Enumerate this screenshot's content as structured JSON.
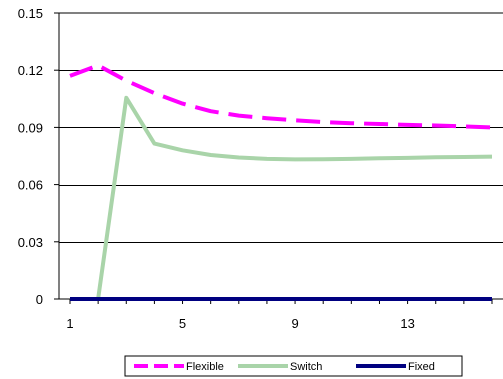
{
  "chart_data": {
    "type": "line",
    "title": "",
    "xlabel": "",
    "ylabel": "",
    "x": [
      1,
      2,
      3,
      4,
      5,
      6,
      7,
      8,
      9,
      10,
      11,
      12,
      13,
      14,
      15,
      16
    ],
    "xlim": [
      1,
      16
    ],
    "ylim": [
      0,
      0.15
    ],
    "x_tick_labels": [
      "1",
      "5",
      "9",
      "13"
    ],
    "x_tick_values": [
      1,
      5,
      9,
      13
    ],
    "y_tick_labels": [
      "0",
      "0.03",
      "0.06",
      "0.09",
      "0.12",
      "0.15"
    ],
    "y_tick_values": [
      0,
      0.03,
      0.06,
      0.09,
      0.12,
      0.15
    ],
    "grid": "horizontal",
    "legend_position": "bottom",
    "series": [
      {
        "name": "Flexible",
        "color": "#ff00ff",
        "style": "dashed",
        "values": [
          0.117,
          0.1225,
          0.1145,
          0.108,
          0.1025,
          0.0985,
          0.0962,
          0.0948,
          0.0937,
          0.0928,
          0.0922,
          0.0918,
          0.0913,
          0.091,
          0.0905,
          0.09
        ]
      },
      {
        "name": "Switch",
        "color": "#a9d4a9",
        "style": "solid",
        "values": [
          0,
          0,
          0.1055,
          0.0815,
          0.078,
          0.0755,
          0.0742,
          0.0735,
          0.0732,
          0.0733,
          0.0735,
          0.0738,
          0.074,
          0.0743,
          0.0745,
          0.0747
        ]
      },
      {
        "name": "Fixed",
        "color": "#000080",
        "style": "solid",
        "values": [
          0,
          0,
          0,
          0,
          0,
          0,
          0,
          0,
          0,
          0,
          0,
          0,
          0,
          0,
          0,
          0
        ]
      }
    ]
  }
}
